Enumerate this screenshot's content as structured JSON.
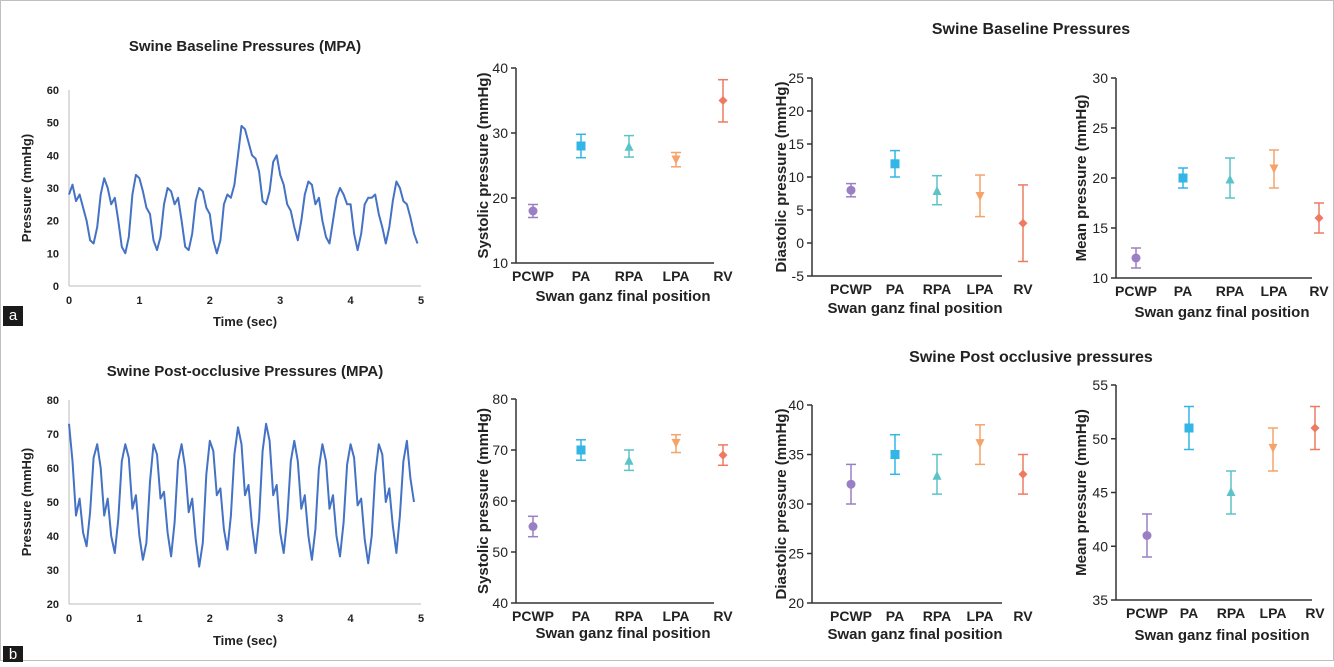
{
  "colors": {
    "trace": "#4472c4",
    "PCWP": "#9b7fc4",
    "PA": "#33b5e6",
    "RPA": "#5cc3c8",
    "LPA": "#f5a36a",
    "RV": "#ee7a62"
  },
  "panels": {
    "a": "a",
    "b": "b"
  },
  "row_titles": {
    "baseline": "Swine Baseline Pressures",
    "post": "Swine Post occlusive pressures"
  },
  "chart_data": [
    {
      "id": "baseline_trace",
      "type": "line",
      "title": "Swine Baseline Pressures (MPA)",
      "xlabel": "Time (sec)",
      "ylabel": "Pressure (mmHg)",
      "xlim": [
        0,
        5
      ],
      "ylim": [
        0,
        60
      ],
      "xticks": [
        "0",
        "1",
        "2",
        "3",
        "4",
        "5"
      ],
      "yticks": [
        "0",
        "10",
        "20",
        "30",
        "40",
        "50",
        "60"
      ],
      "series": [
        {
          "x": [
            0,
            0.05,
            0.1,
            0.15,
            0.2,
            0.25,
            0.3,
            0.35,
            0.4,
            0.45,
            0.5,
            0.55,
            0.6,
            0.65,
            0.7,
            0.75,
            0.8,
            0.85,
            0.9,
            0.95,
            1.0,
            1.05,
            1.1,
            1.15,
            1.2,
            1.25,
            1.3,
            1.35,
            1.4,
            1.45,
            1.5,
            1.55,
            1.6,
            1.65,
            1.7,
            1.75,
            1.8,
            1.85,
            1.9,
            1.95,
            2.0,
            2.05,
            2.1,
            2.15,
            2.2,
            2.25,
            2.3,
            2.35,
            2.4,
            2.45,
            2.5,
            2.55,
            2.6,
            2.65,
            2.7,
            2.75,
            2.8,
            2.85,
            2.9,
            2.95,
            3.0,
            3.05,
            3.1,
            3.15,
            3.2,
            3.25,
            3.3,
            3.35,
            3.4,
            3.45,
            3.5,
            3.55,
            3.6,
            3.65,
            3.7,
            3.75,
            3.8,
            3.85,
            3.9,
            3.95,
            4.0,
            4.05,
            4.1,
            4.15,
            4.2,
            4.25,
            4.3,
            4.35,
            4.4,
            4.45,
            4.5,
            4.55,
            4.6,
            4.65,
            4.7,
            4.75,
            4.8,
            4.85,
            4.9,
            4.95
          ],
          "y": [
            28,
            31,
            26,
            28,
            24,
            20,
            14,
            13,
            18,
            28,
            33,
            30,
            25,
            27,
            20,
            12,
            10,
            15,
            28,
            34,
            33,
            29,
            24,
            22,
            14,
            11,
            15,
            25,
            30,
            29,
            25,
            27,
            20,
            12,
            11,
            16,
            26,
            30,
            29,
            24,
            22,
            14,
            10,
            14,
            25,
            28,
            27,
            31,
            40,
            49,
            48,
            44,
            40,
            39,
            35,
            26,
            25,
            29,
            38,
            40,
            34,
            31,
            25,
            23,
            18,
            14,
            20,
            28,
            32,
            31,
            25,
            27,
            20,
            15,
            13,
            20,
            27,
            30,
            28,
            25,
            25,
            16,
            11,
            16,
            25,
            27,
            27,
            28,
            22,
            18,
            13,
            18,
            26,
            32,
            30,
            26,
            25,
            21,
            16,
            13
          ]
        }
      ]
    },
    {
      "id": "baseline_systolic",
      "type": "scatter",
      "xlabel": "Swan ganz final position",
      "ylabel": "Systolic pressure (mmHg)",
      "ylim": [
        10,
        40
      ],
      "yticks": [
        "10",
        "20",
        "30",
        "40"
      ],
      "categories": [
        "PCWP",
        "PA",
        "RPA",
        "LPA",
        "RV"
      ],
      "mean": [
        18,
        28,
        27.8,
        26,
        35
      ],
      "low": [
        17,
        26.2,
        26.3,
        24.8,
        31.7
      ],
      "high": [
        19,
        29.8,
        29.6,
        27,
        38.2
      ]
    },
    {
      "id": "baseline_diastolic",
      "type": "scatter",
      "xlabel": "Swan ganz final position",
      "ylabel": "Diastolic pressure (mmHg)",
      "ylim": [
        -5,
        25
      ],
      "yticks": [
        "-5",
        "0",
        "5",
        "10",
        "15",
        "20",
        "25"
      ],
      "categories": [
        "PCWP",
        "PA",
        "RPA",
        "LPA",
        "RV"
      ],
      "mean": [
        8,
        12,
        7.8,
        7.2,
        3
      ],
      "low": [
        7,
        10,
        5.8,
        4,
        -2.8
      ],
      "high": [
        9,
        14,
        10.2,
        10.3,
        8.8
      ]
    },
    {
      "id": "baseline_mean",
      "type": "scatter",
      "xlabel": "Swan ganz final position",
      "ylabel": "Mean pressure (mmHg)",
      "ylim": [
        10,
        30
      ],
      "yticks": [
        "10",
        "15",
        "20",
        "25",
        "30"
      ],
      "categories": [
        "PCWP",
        "PA",
        "RPA",
        "LPA",
        "RV"
      ],
      "mean": [
        12,
        20,
        19.8,
        21,
        16
      ],
      "low": [
        11,
        19,
        18,
        19,
        14.5
      ],
      "high": [
        13,
        21,
        22,
        22.8,
        17.5
      ]
    },
    {
      "id": "post_trace",
      "type": "line",
      "title": "Swine Post-occlusive Pressures (MPA)",
      "xlabel": "Time (sec)",
      "ylabel": "Pressure (mmHg)",
      "xlim": [
        0,
        5
      ],
      "ylim": [
        20,
        80
      ],
      "xticks": [
        "0",
        "1",
        "2",
        "3",
        "4",
        "5"
      ],
      "yticks": [
        "20",
        "30",
        "40",
        "50",
        "60",
        "70",
        "80"
      ],
      "series": [
        {
          "x": [
            0,
            0.05,
            0.1,
            0.15,
            0.2,
            0.25,
            0.3,
            0.35,
            0.4,
            0.45,
            0.5,
            0.55,
            0.6,
            0.65,
            0.7,
            0.75,
            0.8,
            0.85,
            0.9,
            0.95,
            1.0,
            1.05,
            1.1,
            1.15,
            1.2,
            1.25,
            1.3,
            1.35,
            1.4,
            1.45,
            1.5,
            1.55,
            1.6,
            1.65,
            1.7,
            1.75,
            1.8,
            1.85,
            1.9,
            1.95,
            2.0,
            2.05,
            2.1,
            2.15,
            2.2,
            2.25,
            2.3,
            2.35,
            2.4,
            2.45,
            2.5,
            2.55,
            2.6,
            2.65,
            2.7,
            2.75,
            2.8,
            2.85,
            2.9,
            2.95,
            3.0,
            3.05,
            3.1,
            3.15,
            3.2,
            3.25,
            3.3,
            3.35,
            3.4,
            3.45,
            3.5,
            3.55,
            3.6,
            3.65,
            3.7,
            3.75,
            3.8,
            3.85,
            3.9,
            3.95,
            4.0,
            4.05,
            4.1,
            4.15,
            4.2,
            4.25,
            4.3,
            4.35,
            4.4,
            4.45,
            4.5,
            4.55,
            4.6,
            4.65,
            4.7,
            4.75,
            4.8,
            4.85,
            4.9
          ],
          "y": [
            73,
            62,
            46,
            51,
            41,
            37,
            47,
            63,
            67,
            60,
            46,
            51,
            40,
            35,
            45,
            62,
            67,
            63,
            48,
            52,
            40,
            33,
            38,
            56,
            67,
            64,
            51,
            53,
            41,
            34,
            44,
            62,
            67,
            60,
            47,
            51,
            39,
            31,
            38,
            58,
            68,
            65,
            52,
            54,
            42,
            36,
            46,
            64,
            72,
            67,
            52,
            55,
            43,
            35,
            45,
            65,
            73,
            68,
            52,
            55,
            41,
            35,
            45,
            62,
            68,
            62,
            48,
            52,
            40,
            33,
            42,
            60,
            67,
            62,
            48,
            52,
            40,
            34,
            44,
            61,
            67,
            63,
            49,
            51,
            39,
            32,
            40,
            58,
            67,
            64,
            50,
            54,
            43,
            35,
            46,
            62,
            68,
            57,
            50
          ]
        }
      ]
    },
    {
      "id": "post_systolic",
      "type": "scatter",
      "xlabel": "Swan ganz final position",
      "ylabel": "Systolic pressure (mmHg)",
      "ylim": [
        40,
        80
      ],
      "yticks": [
        "40",
        "50",
        "60",
        "70",
        "80"
      ],
      "categories": [
        "PCWP",
        "PA",
        "RPA",
        "LPA",
        "RV"
      ],
      "mean": [
        55,
        70,
        67.8,
        71.5,
        69
      ],
      "low": [
        53,
        68,
        66,
        69.5,
        67
      ],
      "high": [
        57,
        72,
        70,
        73,
        71
      ]
    },
    {
      "id": "post_diastolic",
      "type": "scatter",
      "xlabel": "Swan ganz final position",
      "ylabel": "Diastolic pressure (mmHg)",
      "ylim": [
        20,
        40
      ],
      "yticks": [
        "20",
        "25",
        "30",
        "35",
        "40"
      ],
      "categories": [
        "PCWP",
        "PA",
        "RPA",
        "LPA",
        "RV"
      ],
      "mean": [
        32,
        35,
        32.8,
        36.2,
        33
      ],
      "low": [
        30,
        33,
        31,
        34,
        31
      ],
      "high": [
        34,
        37,
        35,
        38,
        35
      ]
    },
    {
      "id": "post_mean",
      "type": "scatter",
      "xlabel": "Swan ganz final position",
      "ylabel": "Mean pressure (mmHg)",
      "ylim": [
        35,
        55
      ],
      "yticks": [
        "35",
        "40",
        "45",
        "50",
        "55"
      ],
      "categories": [
        "PCWP",
        "PA",
        "RPA",
        "LPA",
        "RV"
      ],
      "mean": [
        41,
        51,
        45,
        49.2,
        51
      ],
      "low": [
        39,
        49,
        43,
        47,
        49
      ],
      "high": [
        43,
        53,
        47,
        51,
        53
      ]
    }
  ]
}
